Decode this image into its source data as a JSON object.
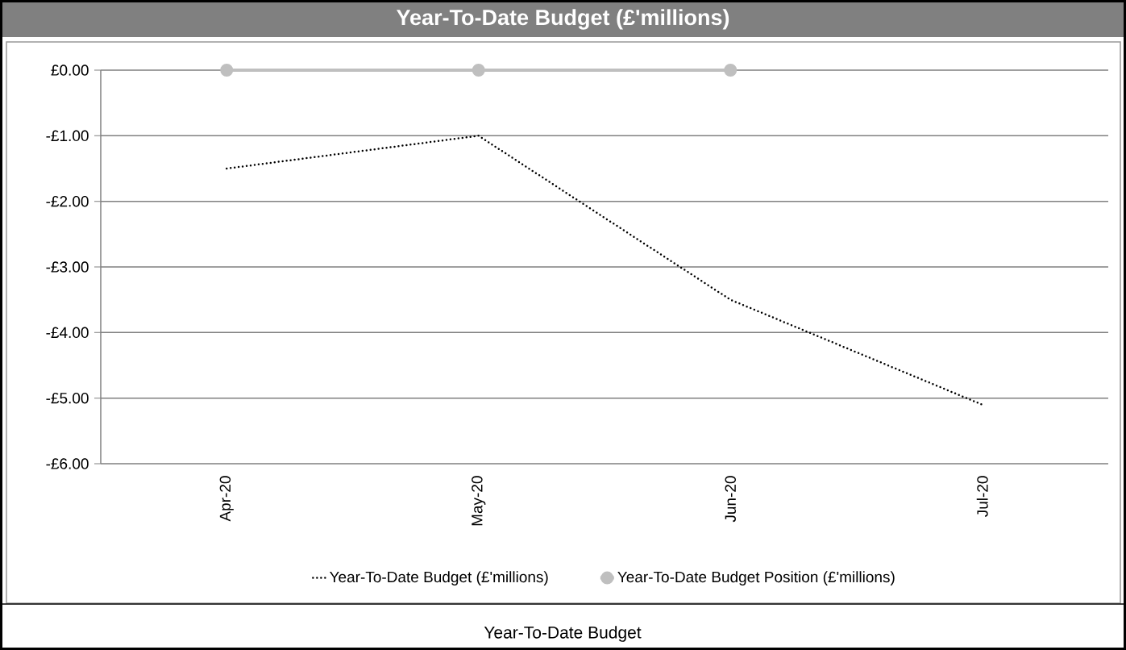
{
  "chart_data": {
    "type": "line",
    "title": "Year-To-Date Budget (£'millions)",
    "categories": [
      "Apr-20",
      "May-20",
      "Jun-20",
      "Jul-20"
    ],
    "series": [
      {
        "name": "Year-To-Date Budget (£'millions)",
        "color": "#000000",
        "values": [
          -1.5,
          -1.0,
          -3.5,
          -5.1
        ],
        "line_style": "dotted",
        "marker": "none"
      },
      {
        "name": "Year-To-Date Budget Position (£'millions)",
        "color": "#bfbfbf",
        "values": [
          0,
          0,
          0,
          null
        ],
        "line_style": "solid",
        "marker": "circle"
      }
    ],
    "ylim": [
      -6,
      0
    ],
    "yticks": [
      {
        "value": -6,
        "label": "-£6.00"
      },
      {
        "value": -5,
        "label": "-£5.00"
      },
      {
        "value": -4,
        "label": "-£4.00"
      },
      {
        "value": -3,
        "label": "-£3.00"
      },
      {
        "value": -2,
        "label": "-£2.00"
      },
      {
        "value": -1,
        "label": "-£1.00"
      },
      {
        "value": 0,
        "label": "£0.00"
      }
    ],
    "grid": "y",
    "legend": "bottom",
    "annotations": [
      "Year-To-Date Budget"
    ]
  }
}
